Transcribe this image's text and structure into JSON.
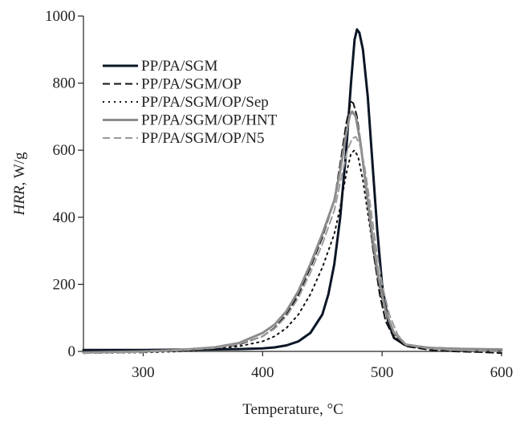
{
  "chart_data": {
    "type": "line",
    "xlabel": "Temperature, °C",
    "ylabel_italic": "HRR",
    "ylabel_unit": ", W/g",
    "xlim": [
      250,
      600
    ],
    "ylim": [
      0,
      1000
    ],
    "xticks": [
      300,
      400,
      500,
      600
    ],
    "yticks": [
      0,
      200,
      400,
      600,
      800,
      1000
    ],
    "grid": false,
    "legend_position": "top-left",
    "series": [
      {
        "name": "PP/PA/SGM",
        "color": "#0b1626",
        "dash": "solid",
        "width": 3,
        "points": [
          [
            250,
            4
          ],
          [
            300,
            4
          ],
          [
            330,
            5
          ],
          [
            360,
            6
          ],
          [
            380,
            7
          ],
          [
            400,
            9
          ],
          [
            410,
            12
          ],
          [
            420,
            18
          ],
          [
            430,
            30
          ],
          [
            440,
            55
          ],
          [
            450,
            110
          ],
          [
            455,
            170
          ],
          [
            460,
            260
          ],
          [
            465,
            400
          ],
          [
            470,
            600
          ],
          [
            474,
            800
          ],
          [
            477,
            930
          ],
          [
            479,
            960
          ],
          [
            481,
            950
          ],
          [
            484,
            900
          ],
          [
            488,
            760
          ],
          [
            492,
            560
          ],
          [
            496,
            360
          ],
          [
            500,
            200
          ],
          [
            505,
            90
          ],
          [
            510,
            40
          ],
          [
            520,
            18
          ],
          [
            540,
            10
          ],
          [
            560,
            8
          ],
          [
            580,
            6
          ],
          [
            600,
            5
          ]
        ]
      },
      {
        "name": "PP/PA/SGM/OP",
        "color": "#111111",
        "dash": "9,5",
        "width": 2,
        "points": [
          [
            250,
            -5
          ],
          [
            300,
            -2
          ],
          [
            330,
            3
          ],
          [
            360,
            10
          ],
          [
            380,
            20
          ],
          [
            400,
            45
          ],
          [
            410,
            70
          ],
          [
            420,
            110
          ],
          [
            430,
            170
          ],
          [
            440,
            250
          ],
          [
            450,
            340
          ],
          [
            460,
            450
          ],
          [
            465,
            560
          ],
          [
            470,
            680
          ],
          [
            474,
            745
          ],
          [
            476,
            740
          ],
          [
            479,
            700
          ],
          [
            483,
            600
          ],
          [
            488,
            440
          ],
          [
            493,
            290
          ],
          [
            498,
            170
          ],
          [
            503,
            90
          ],
          [
            510,
            40
          ],
          [
            520,
            15
          ],
          [
            540,
            4
          ],
          [
            560,
            0
          ],
          [
            580,
            -2
          ],
          [
            600,
            -5
          ]
        ]
      },
      {
        "name": "PP/PA/SGM/OP/Sep",
        "color": "#111111",
        "dash": "2,5",
        "width": 2,
        "points": [
          [
            250,
            -5
          ],
          [
            300,
            -3
          ],
          [
            330,
            0
          ],
          [
            360,
            8
          ],
          [
            380,
            15
          ],
          [
            400,
            30
          ],
          [
            410,
            45
          ],
          [
            420,
            70
          ],
          [
            430,
            110
          ],
          [
            440,
            170
          ],
          [
            450,
            250
          ],
          [
            460,
            350
          ],
          [
            465,
            430
          ],
          [
            470,
            530
          ],
          [
            474,
            590
          ],
          [
            477,
            600
          ],
          [
            480,
            580
          ],
          [
            484,
            510
          ],
          [
            489,
            390
          ],
          [
            494,
            270
          ],
          [
            499,
            170
          ],
          [
            505,
            90
          ],
          [
            512,
            40
          ],
          [
            520,
            18
          ],
          [
            540,
            8
          ],
          [
            560,
            4
          ],
          [
            580,
            2
          ],
          [
            600,
            0
          ]
        ]
      },
      {
        "name": "PP/PA/SGM/OP/HNT",
        "color": "#8c8c8c",
        "dash": "solid",
        "width": 3,
        "points": [
          [
            250,
            -3
          ],
          [
            300,
            0
          ],
          [
            330,
            4
          ],
          [
            360,
            12
          ],
          [
            380,
            25
          ],
          [
            400,
            55
          ],
          [
            410,
            80
          ],
          [
            420,
            120
          ],
          [
            430,
            180
          ],
          [
            440,
            260
          ],
          [
            450,
            350
          ],
          [
            460,
            450
          ],
          [
            465,
            540
          ],
          [
            470,
            650
          ],
          [
            473,
            705
          ],
          [
            475,
            715
          ],
          [
            478,
            700
          ],
          [
            482,
            620
          ],
          [
            487,
            480
          ],
          [
            492,
            340
          ],
          [
            497,
            220
          ],
          [
            503,
            120
          ],
          [
            510,
            55
          ],
          [
            520,
            20
          ],
          [
            540,
            10
          ],
          [
            560,
            8
          ],
          [
            580,
            7
          ],
          [
            600,
            6
          ]
        ]
      },
      {
        "name": "PP/PA/SGM/OP/N5",
        "color": "#9a9a9a",
        "dash": "9,5",
        "width": 2,
        "points": [
          [
            250,
            -5
          ],
          [
            300,
            -2
          ],
          [
            330,
            3
          ],
          [
            360,
            10
          ],
          [
            380,
            22
          ],
          [
            400,
            45
          ],
          [
            410,
            68
          ],
          [
            420,
            105
          ],
          [
            430,
            160
          ],
          [
            440,
            235
          ],
          [
            450,
            320
          ],
          [
            460,
            420
          ],
          [
            466,
            520
          ],
          [
            471,
            600
          ],
          [
            475,
            635
          ],
          [
            478,
            640
          ],
          [
            481,
            620
          ],
          [
            485,
            560
          ],
          [
            490,
            440
          ],
          [
            495,
            310
          ],
          [
            500,
            200
          ],
          [
            506,
            110
          ],
          [
            513,
            50
          ],
          [
            520,
            20
          ],
          [
            540,
            8
          ],
          [
            560,
            4
          ],
          [
            580,
            2
          ],
          [
            600,
            0
          ]
        ]
      }
    ]
  }
}
